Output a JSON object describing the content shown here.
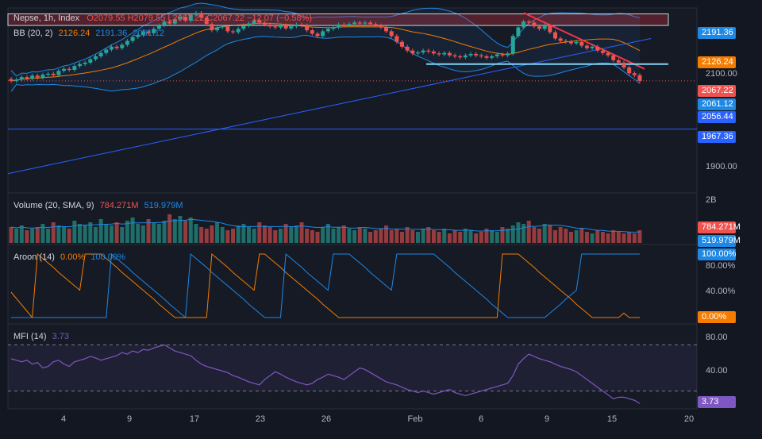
{
  "legend": {
    "symbol": "Nepse, 1h, Index",
    "ohlc": "O2079.55 H2079.55 L2067.22 C2067.22 −12.07 (−0.58%)",
    "bb_title": "BB (20, 2)",
    "bb_basis": "2126.24",
    "bb_upper": "2191.36",
    "bb_lower": "2061.12",
    "vol_title": "Volume (20, SMA, 9)",
    "vol_value": "784.271M",
    "vol_sma": "519.979M",
    "aroon_title": "Aroon (14)",
    "aroon_up": "0.00%",
    "aroon_down": "100.00%",
    "mfi_title": "MFI (14)",
    "mfi_value": "3.73"
  },
  "price_axis": {
    "ticks": [
      "2100.00",
      "1900.00"
    ],
    "tags": [
      {
        "text": "2191.36",
        "color": "#1e88e5"
      },
      {
        "text": "2126.24",
        "color": "#f57c00"
      },
      {
        "text": "2067.22",
        "color": "#ef5350"
      },
      {
        "text": "2061.12",
        "color": "#1e88e5"
      },
      {
        "text": "2056.44",
        "color": "#2962ff"
      },
      {
        "text": "1967.36",
        "color": "#2962ff"
      }
    ]
  },
  "volume_axis": {
    "top": "2B",
    "tags": [
      {
        "text": "784.271M",
        "color": "#ef5350"
      },
      {
        "text": "519.979M",
        "color": "#1e88e5"
      }
    ]
  },
  "aroon_axis": {
    "ticks": [
      "80.00%",
      "40.00%"
    ],
    "tags": [
      {
        "text": "100.00%",
        "color": "#1e88e5"
      },
      {
        "text": "0.00%",
        "color": "#f57c00"
      }
    ]
  },
  "mfi_axis": {
    "ticks": [
      "80.00",
      "40.00"
    ],
    "tags": [
      {
        "text": "3.73",
        "color": "#7e57c2"
      }
    ]
  },
  "x_ticks": [
    "4",
    "9",
    "17",
    "23",
    "26",
    "Feb",
    "6",
    "9",
    "15",
    "20"
  ],
  "colors": {
    "up": "#26a69a",
    "down": "#ef5350",
    "bb_basis": "#f57c00",
    "bb_band": "#1e88e5",
    "aroon_up": "#f57c00",
    "aroon_down": "#1e88e5",
    "mfi": "#7e57c2",
    "trend_down": "#f23645",
    "trend_up": "#2962ff"
  },
  "chart_data": {
    "type": "candlestick",
    "title": "Nepse, 1h, Index",
    "price_range": [
      1840,
      2215
    ],
    "close": [
      2067,
      2070,
      2075,
      2072,
      2078,
      2074,
      2080,
      2082,
      2079,
      2088,
      2092,
      2090,
      2098,
      2102,
      2105,
      2112,
      2118,
      2125,
      2132,
      2138,
      2135,
      2142,
      2150,
      2158,
      2162,
      2170,
      2166,
      2175,
      2182,
      2190,
      2186,
      2195,
      2200,
      2192,
      2204,
      2208,
      2198,
      2185,
      2172,
      2178,
      2180,
      2170,
      2168,
      2175,
      2182,
      2186,
      2192,
      2188,
      2184,
      2180,
      2178,
      2182,
      2176,
      2180,
      2184,
      2182,
      2172,
      2165,
      2160,
      2170,
      2175,
      2178,
      2184,
      2182,
      2185,
      2188,
      2186,
      2188,
      2185,
      2182,
      2178,
      2170,
      2160,
      2148,
      2138,
      2130,
      2124,
      2126,
      2130,
      2128,
      2124,
      2122,
      2125,
      2120,
      2118,
      2116,
      2120,
      2123,
      2120,
      2118,
      2115,
      2118,
      2122,
      2120,
      2124,
      2160,
      2178,
      2190,
      2188,
      2180,
      2175,
      2182,
      2168,
      2155,
      2150,
      2148,
      2145,
      2148,
      2140,
      2135,
      2138,
      2130,
      2125,
      2120,
      2110,
      2105,
      2095,
      2083,
      2079,
      2067
    ],
    "volume": [
      1.0,
      0.9,
      1.1,
      0.8,
      0.9,
      1.0,
      1.2,
      0.9,
      1.3,
      1.1,
      1.0,
      0.9,
      1.4,
      1.2,
      1.1,
      1.3,
      1.0,
      1.5,
      1.2,
      1.1,
      1.3,
      1.0,
      1.4,
      1.6,
      1.2,
      1.1,
      1.5,
      1.3,
      1.2,
      1.4,
      1.8,
      1.5,
      1.7,
      1.4,
      1.6,
      1.2,
      1.0,
      0.9,
      1.1,
      1.3,
      1.0,
      0.8,
      0.9,
      1.1,
      1.2,
      1.0,
      0.9,
      1.3,
      1.1,
      1.0,
      0.8,
      0.9,
      1.2,
      1.0,
      1.1,
      1.3,
      0.9,
      0.8,
      0.7,
      1.0,
      1.2,
      0.9,
      1.0,
      1.1,
      0.9,
      0.8,
      1.0,
      0.9,
      0.7,
      0.8,
      0.9,
      1.1,
      0.8,
      0.9,
      0.7,
      1.0,
      0.8,
      0.7,
      0.9,
      1.0,
      0.8,
      0.7,
      0.9,
      0.6,
      0.8,
      0.7,
      0.9,
      0.8,
      0.6,
      0.7,
      0.9,
      0.8,
      0.7,
      1.0,
      0.9,
      1.1,
      1.3,
      1.2,
      1.4,
      1.0,
      0.9,
      1.2,
      1.1,
      0.8,
      1.0,
      0.9,
      0.7,
      0.8,
      0.9,
      0.7,
      0.6,
      0.8,
      0.7,
      0.6,
      0.8,
      0.7,
      0.6,
      0.7,
      0.6,
      0.8
    ],
    "mfi": [
      62,
      60,
      58,
      60,
      55,
      57,
      50,
      52,
      58,
      60,
      55,
      52,
      58,
      60,
      62,
      65,
      63,
      60,
      62,
      64,
      66,
      70,
      68,
      72,
      70,
      74,
      73,
      76,
      78,
      80,
      76,
      72,
      70,
      68,
      66,
      60,
      55,
      52,
      50,
      48,
      46,
      44,
      40,
      38,
      35,
      32,
      30,
      28,
      35,
      40,
      45,
      42,
      38,
      35,
      32,
      30,
      28,
      30,
      35,
      38,
      42,
      40,
      38,
      35,
      40,
      45,
      50,
      48,
      44,
      40,
      36,
      32,
      30,
      28,
      25,
      22,
      20,
      18,
      20,
      18,
      16,
      18,
      20,
      22,
      18,
      16,
      14,
      16,
      18,
      20,
      22,
      24,
      26,
      28,
      30,
      40,
      55,
      62,
      68,
      65,
      62,
      60,
      58,
      55,
      52,
      50,
      48,
      45,
      40,
      35,
      30,
      25,
      20,
      15,
      10,
      12,
      12,
      10,
      8,
      3.73
    ],
    "aroon_up": [
      40,
      30,
      20,
      10,
      0,
      100,
      93,
      86,
      79,
      71,
      64,
      57,
      50,
      43,
      100,
      100,
      100,
      100,
      93,
      86,
      79,
      71,
      64,
      57,
      50,
      43,
      36,
      29,
      21,
      14,
      7,
      0,
      0,
      0,
      0,
      0,
      0,
      0,
      100,
      93,
      86,
      79,
      71,
      64,
      57,
      50,
      43,
      100,
      100,
      93,
      86,
      79,
      71,
      64,
      57,
      50,
      43,
      36,
      29,
      21,
      14,
      7,
      0,
      0,
      0,
      0,
      0,
      0,
      0,
      0,
      0,
      0,
      0,
      0,
      0,
      0,
      0,
      0,
      0,
      0,
      0,
      0,
      0,
      0,
      0,
      0,
      0,
      0,
      0,
      0,
      0,
      0,
      0,
      100,
      100,
      100,
      100,
      93,
      86,
      79,
      71,
      64,
      57,
      50,
      43,
      36,
      29,
      21,
      14,
      7,
      0,
      0,
      0,
      0,
      0,
      0,
      7,
      0,
      0,
      0
    ],
    "aroon_down": [
      0,
      0,
      0,
      0,
      0,
      0,
      0,
      0,
      0,
      0,
      0,
      0,
      0,
      0,
      0,
      0,
      0,
      0,
      0,
      100,
      93,
      86,
      79,
      71,
      64,
      57,
      50,
      43,
      36,
      29,
      21,
      14,
      7,
      0,
      100,
      93,
      86,
      79,
      71,
      64,
      57,
      50,
      43,
      36,
      29,
      21,
      14,
      7,
      0,
      0,
      0,
      0,
      100,
      93,
      86,
      79,
      71,
      64,
      57,
      50,
      43,
      100,
      100,
      100,
      100,
      93,
      86,
      79,
      71,
      64,
      57,
      50,
      43,
      100,
      100,
      100,
      100,
      100,
      100,
      100,
      100,
      93,
      86,
      79,
      71,
      64,
      57,
      50,
      43,
      36,
      29,
      21,
      14,
      7,
      0,
      0,
      0,
      0,
      0,
      0,
      0,
      0,
      7,
      14,
      21,
      29,
      36,
      43,
      100,
      100,
      100,
      100,
      100,
      100,
      100,
      100,
      100,
      100,
      100,
      100
    ]
  }
}
